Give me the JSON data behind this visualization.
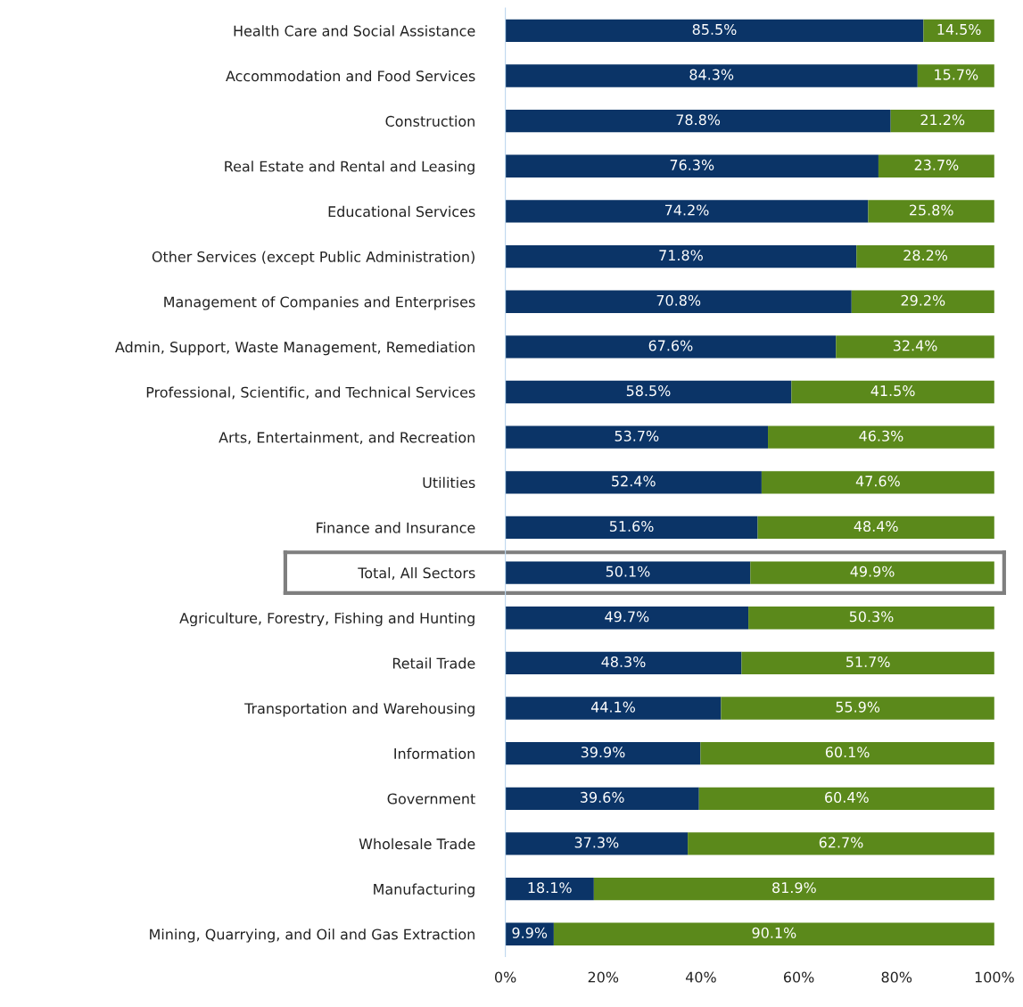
{
  "chart_data": {
    "type": "bar",
    "orientation": "horizontal",
    "stacked": true,
    "categories": [
      "Health Care and Social Assistance",
      "Accommodation and Food Services",
      "Construction",
      "Real Estate and Rental and Leasing",
      "Educational Services",
      "Other Services (except Public Administration)",
      "Management of Companies and Enterprises",
      "Admin, Support, Waste Management, Remediation",
      "Professional, Scientific, and Technical Services",
      "Arts, Entertainment, and Recreation",
      "Utilities",
      "Finance and Insurance",
      "Total, All Sectors",
      "Agriculture, Forestry, Fishing and Hunting",
      "Retail Trade",
      "Transportation and Warehousing",
      "Information",
      "Government",
      "Wholesale Trade",
      "Manufacturing",
      "Mining, Quarrying, and Oil and Gas Extraction"
    ],
    "series": [
      {
        "color": "#0b3467",
        "values": [
          85.5,
          84.3,
          78.8,
          76.3,
          74.2,
          71.8,
          70.8,
          67.6,
          58.5,
          53.7,
          52.4,
          51.6,
          50.1,
          49.7,
          48.3,
          44.1,
          39.9,
          39.6,
          37.3,
          18.1,
          9.9
        ],
        "value_labels": [
          "85.5%",
          "84.3%",
          "78.8%",
          "76.3%",
          "74.2%",
          "71.8%",
          "70.8%",
          "67.6%",
          "58.5%",
          "53.7%",
          "52.4%",
          "51.6%",
          "50.1%",
          "49.7%",
          "48.3%",
          "44.1%",
          "39.9%",
          "39.6%",
          "37.3%",
          "18.1%",
          "9.9%"
        ]
      },
      {
        "color": "#5b891b",
        "values": [
          14.5,
          15.7,
          21.2,
          23.7,
          25.8,
          28.2,
          29.2,
          32.4,
          41.5,
          46.3,
          47.6,
          48.4,
          49.9,
          50.3,
          51.7,
          55.9,
          60.1,
          60.4,
          62.7,
          81.9,
          90.1
        ],
        "value_labels": [
          "14.5%",
          "15.7%",
          "21.2%",
          "23.7%",
          "25.8%",
          "28.2%",
          "29.2%",
          "32.4%",
          "41.5%",
          "46.3%",
          "47.6%",
          "48.4%",
          "49.9%",
          "50.3%",
          "51.7%",
          "55.9%",
          "60.1%",
          "60.4%",
          "62.7%",
          "81.9%",
          "90.1%"
        ]
      }
    ],
    "xlim": [
      0,
      100
    ],
    "xticks": [
      {
        "value": 0,
        "label": "0%"
      },
      {
        "value": 20,
        "label": "20%"
      },
      {
        "value": 40,
        "label": "40%"
      },
      {
        "value": 60,
        "label": "60%"
      },
      {
        "value": 80,
        "label": "80%"
      },
      {
        "value": 100,
        "label": "100%"
      }
    ],
    "grid": false,
    "legend": false
  }
}
